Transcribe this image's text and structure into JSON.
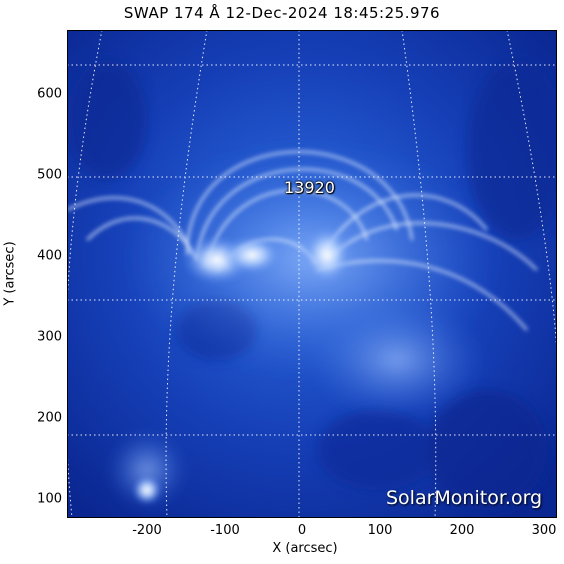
{
  "title": "SWAP 174 Å 12-Dec-2024 18:45:25.976",
  "axes": {
    "xlabel": "X (arcsec)",
    "ylabel": "Y (arcsec)",
    "x_ticks": [
      "-200",
      "-100",
      "0",
      "100",
      "200",
      "300"
    ],
    "y_ticks": [
      "100",
      "200",
      "300",
      "400",
      "500",
      "600"
    ]
  },
  "region_label": "13920",
  "watermark": "SolarMonitor.org",
  "colors": {
    "background": "#0a2a9a",
    "glow": "#e8f2ff",
    "grid": "#ffffff"
  }
}
